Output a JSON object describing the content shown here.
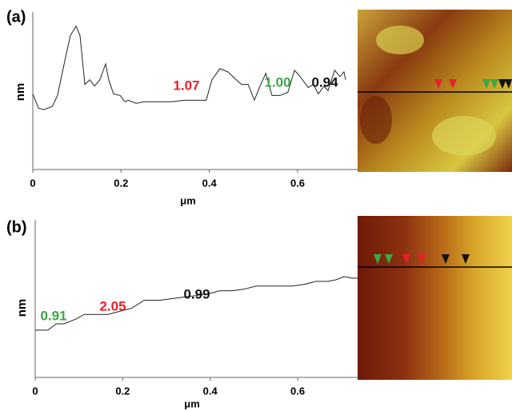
{
  "chart_data": [
    {
      "type": "line",
      "panel": "(a)",
      "xlabel": "μm",
      "ylabel": "nm",
      "xlim": [
        0,
        0.736
      ],
      "ylim": [
        0,
        10
      ],
      "xticks": [
        0,
        0.2,
        0.4,
        0.6
      ],
      "color": "#222222",
      "x": [
        0,
        0.013,
        0.025,
        0.044,
        0.056,
        0.071,
        0.085,
        0.098,
        0.107,
        0.118,
        0.129,
        0.14,
        0.152,
        0.165,
        0.172,
        0.183,
        0.198,
        0.209,
        0.216,
        0.234,
        0.252,
        0.27,
        0.288,
        0.316,
        0.343,
        0.379,
        0.393,
        0.406,
        0.424,
        0.442,
        0.461,
        0.473,
        0.488,
        0.502,
        0.515,
        0.528,
        0.542,
        0.56,
        0.578,
        0.593,
        0.606,
        0.624,
        0.636,
        0.647,
        0.66,
        0.669,
        0.684,
        0.696,
        0.705,
        0.709
      ],
      "values": [
        4.8,
        3.9,
        3.8,
        4.0,
        4.7,
        6.7,
        8.5,
        9.1,
        8.5,
        5.4,
        5.7,
        5.3,
        5.7,
        6.7,
        5.7,
        4.8,
        4.7,
        4.3,
        4.4,
        4.2,
        4.3,
        4.3,
        4.3,
        4.3,
        4.4,
        4.4,
        4.4,
        5.7,
        6.4,
        6.2,
        5.7,
        5.4,
        5.4,
        4.4,
        5.3,
        6.1,
        4.7,
        4.7,
        4.9,
        6.3,
        5.9,
        5.2,
        5.4,
        4.8,
        5.3,
        5.0,
        6.3,
        5.9,
        6.2,
        5.7
      ],
      "annotations": [
        {
          "text": "1.07",
          "color": "#e8202a"
        },
        {
          "text": "1.00",
          "color": "#3aa843"
        },
        {
          "text": "0.94",
          "color": "#111111"
        }
      ]
    },
    {
      "type": "line",
      "panel": "(b)",
      "xlabel": "μm",
      "ylabel": "nm",
      "xlim": [
        0,
        0.737
      ],
      "ylim": [
        0,
        10
      ],
      "xticks": [
        0,
        0.2,
        0.4,
        0.6
      ],
      "color": "#222222",
      "x": [
        0,
        0.029,
        0.048,
        0.066,
        0.093,
        0.112,
        0.139,
        0.166,
        0.194,
        0.221,
        0.249,
        0.285,
        0.313,
        0.34,
        0.368,
        0.395,
        0.422,
        0.45,
        0.477,
        0.505,
        0.532,
        0.56,
        0.587,
        0.614,
        0.642,
        0.669,
        0.688,
        0.706,
        0.724,
        0.737
      ],
      "values": [
        3.0,
        3.0,
        3.4,
        3.4,
        3.7,
        4.0,
        4.0,
        4.0,
        4.2,
        4.4,
        4.9,
        4.9,
        5.0,
        5.1,
        5.2,
        5.3,
        5.5,
        5.5,
        5.6,
        5.8,
        5.8,
        5.8,
        5.8,
        5.9,
        6.1,
        6.1,
        6.2,
        6.4,
        6.3,
        6.3
      ],
      "annotations": [
        {
          "text": "0.91",
          "color": "#3aa843"
        },
        {
          "text": "2.05",
          "color": "#e8202a"
        },
        {
          "text": "0.99",
          "color": "#111111"
        }
      ]
    }
  ]
}
